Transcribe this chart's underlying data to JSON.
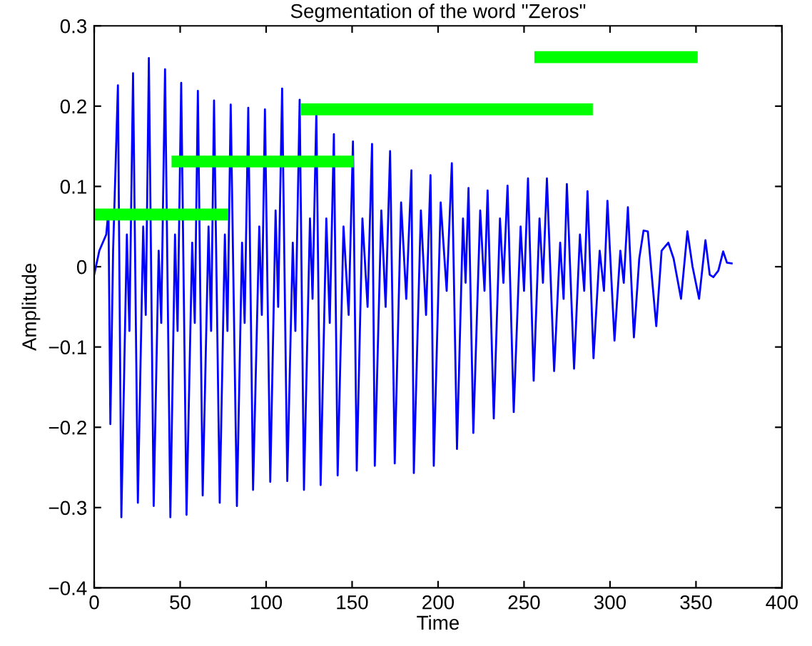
{
  "chart_data": {
    "type": "line",
    "title": "Segmentation of the word \"Zeros\"",
    "xlabel": "Time",
    "ylabel": "Amplitude",
    "xlim": [
      0,
      400
    ],
    "xticks": [
      0,
      50,
      100,
      150,
      200,
      250,
      300,
      350,
      400
    ],
    "ylim": [
      -0.4,
      0.3
    ],
    "yticks": [
      {
        "value": -0.4,
        "label": "−0.4"
      },
      {
        "value": -0.3,
        "label": "−0.3"
      },
      {
        "value": -0.2,
        "label": "−0.2"
      },
      {
        "value": -0.1,
        "label": "−0.1"
      },
      {
        "value": 0,
        "label": "0"
      },
      {
        "value": 0.1,
        "label": "0.1"
      },
      {
        "value": 0.2,
        "label": "0.2"
      },
      {
        "value": 0.3,
        "label": "0.3"
      }
    ],
    "grid": false,
    "marker": "none",
    "line_style": "solid",
    "series": [
      {
        "color": "#0000ff",
        "x": [
          0,
          3,
          7,
          8.3,
          9.4,
          11,
          13.8,
          15.8,
          19,
          20.5,
          22.6,
          25.4,
          28.5,
          30,
          31.8,
          34.6,
          37.5,
          39,
          41.2,
          44.3,
          47,
          48.5,
          50.6,
          53.7,
          57,
          58.5,
          60.3,
          63.1,
          66.5,
          68,
          69.7,
          73.0,
          76,
          77.5,
          79.4,
          83.0,
          86,
          87.5,
          89.6,
          92.4,
          96,
          97.5,
          99.3,
          102.4,
          105.5,
          107,
          109.3,
          112.3,
          115.5,
          117,
          119.5,
          122,
          125.5,
          127,
          129.2,
          131.7,
          135,
          137,
          139.4,
          141.6,
          145,
          148,
          150.5,
          152.7,
          156,
          159,
          161.6,
          163.2,
          167,
          169.5,
          172.1,
          174.8,
          178.5,
          181.5,
          184.5,
          185.9,
          190,
          193,
          195.6,
          197.5,
          201.5,
          205,
          208,
          211,
          214.5,
          216,
          217.7,
          220.5,
          224.5,
          227,
          228.8,
          232.4,
          236,
          238,
          240.4,
          244,
          248,
          250,
          252.3,
          255.6,
          259,
          261,
          263.3,
          267.5,
          271,
          273,
          274.9,
          279.1,
          282.5,
          285,
          286.9,
          290.4,
          294,
          296.5,
          298.5,
          302.6,
          306,
          308,
          310.4,
          313.9,
          317,
          319.5,
          322,
          326.9,
          330,
          333.9,
          337,
          341.3,
          345,
          348,
          351.8,
          355.5,
          358,
          360.1,
          363,
          365.8,
          368,
          371.3
        ],
        "values": [
          -0.01,
          0.02,
          0.04,
          0.07,
          -0.196,
          0.02,
          0.226,
          -0.312,
          0.04,
          -0.08,
          0.241,
          -0.294,
          0.05,
          -0.06,
          0.26,
          -0.298,
          0.02,
          -0.07,
          0.246,
          -0.312,
          0.04,
          -0.08,
          0.229,
          -0.309,
          0.03,
          -0.07,
          0.219,
          -0.285,
          0.05,
          -0.08,
          0.207,
          -0.294,
          0.04,
          -0.08,
          0.202,
          -0.298,
          0.03,
          -0.07,
          0.198,
          -0.278,
          0.05,
          -0.06,
          0.196,
          -0.268,
          0.07,
          -0.05,
          0.222,
          -0.267,
          0.03,
          -0.08,
          0.208,
          -0.278,
          0.06,
          -0.04,
          0.193,
          -0.272,
          0.06,
          -0.07,
          0.165,
          -0.26,
          0.05,
          -0.06,
          0.156,
          -0.254,
          0.06,
          -0.05,
          0.153,
          -0.248,
          0.07,
          -0.05,
          0.144,
          -0.245,
          0.08,
          -0.04,
          0.12,
          -0.257,
          0.07,
          -0.06,
          0.114,
          -0.248,
          0.08,
          -0.03,
          0.129,
          -0.227,
          0.06,
          -0.02,
          0.098,
          -0.207,
          0.07,
          -0.03,
          0.095,
          -0.189,
          0.06,
          -0.02,
          0.101,
          -0.181,
          0.05,
          -0.03,
          0.11,
          -0.142,
          0.06,
          -0.02,
          0.11,
          -0.13,
          0.03,
          -0.04,
          0.103,
          -0.127,
          0.04,
          -0.03,
          0.094,
          -0.114,
          0.02,
          -0.03,
          0.082,
          -0.092,
          0.02,
          -0.02,
          0.074,
          -0.088,
          0.01,
          0.045,
          0.044,
          -0.074,
          0.02,
          0.03,
          0.01,
          -0.04,
          0.044,
          0.0,
          -0.04,
          0.033,
          -0.01,
          -0.013,
          -0.005,
          0.019,
          0.005,
          0.004
        ]
      },
      {
        "color": "#00ff00",
        "x": [
          0,
          78
        ],
        "values": [
          0.065,
          0.065
        ]
      },
      {
        "color": "#00ff00",
        "x": [
          45,
          151
        ],
        "values": [
          0.131,
          0.131
        ]
      },
      {
        "color": "#00ff00",
        "x": [
          120,
          290
        ],
        "values": [
          0.196,
          0.196
        ]
      },
      {
        "color": "#00ff00",
        "x": [
          256,
          351
        ],
        "values": [
          0.261,
          0.261
        ]
      }
    ]
  }
}
